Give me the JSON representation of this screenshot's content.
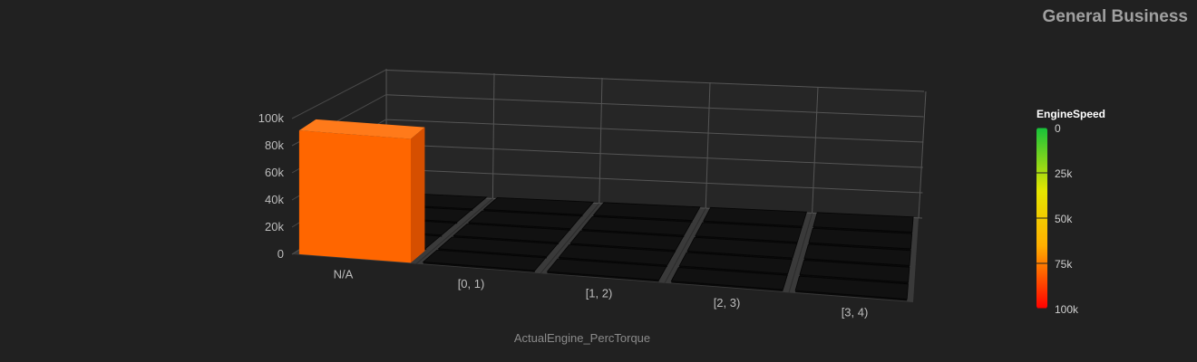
{
  "title": "General Business",
  "chart_data": {
    "type": "bar",
    "title": "General Business",
    "xlabel": "ActualEngine_PercTorque",
    "ylabel": "",
    "categories": [
      "N/A",
      "[0, 1)",
      "[1, 2)",
      "[2, 3)",
      "[3, 4)"
    ],
    "y_ticks": [
      "0",
      "20k",
      "40k",
      "60k",
      "80k",
      "100k"
    ],
    "ylim": [
      0,
      100000
    ],
    "rows_per_category": 5,
    "values": [
      [
        92000,
        0,
        0,
        0,
        0
      ],
      [
        0,
        0,
        0,
        0,
        0
      ],
      [
        0,
        0,
        0,
        0,
        0
      ],
      [
        0,
        0,
        0,
        0,
        0
      ],
      [
        0,
        0,
        0,
        0,
        0
      ]
    ],
    "grid": true,
    "legend": {
      "title": "EngineSpeed",
      "ticks": [
        "0",
        "25k",
        "50k",
        "75k",
        "100k"
      ],
      "min": 0,
      "max": 100000,
      "colors": [
        "#16c23a",
        "#e6e600",
        "#ffb000",
        "#ff0000"
      ],
      "placement": "right"
    },
    "bar_color": "#ff6600",
    "empty_bar_color": "#111111"
  }
}
